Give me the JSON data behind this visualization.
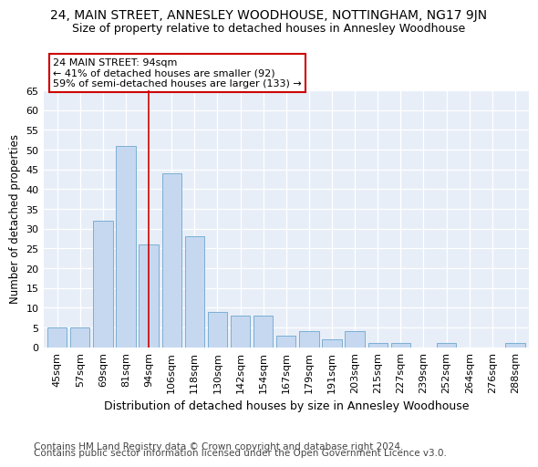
{
  "title": "24, MAIN STREET, ANNESLEY WOODHOUSE, NOTTINGHAM, NG17 9JN",
  "subtitle": "Size of property relative to detached houses in Annesley Woodhouse",
  "xlabel": "Distribution of detached houses by size in Annesley Woodhouse",
  "ylabel": "Number of detached properties",
  "categories": [
    "45sqm",
    "57sqm",
    "69sqm",
    "81sqm",
    "94sqm",
    "106sqm",
    "118sqm",
    "130sqm",
    "142sqm",
    "154sqm",
    "167sqm",
    "179sqm",
    "191sqm",
    "203sqm",
    "215sqm",
    "227sqm",
    "239sqm",
    "252sqm",
    "264sqm",
    "276sqm",
    "288sqm"
  ],
  "values": [
    5,
    5,
    32,
    51,
    26,
    44,
    28,
    9,
    8,
    8,
    3,
    4,
    2,
    4,
    1,
    1,
    0,
    1,
    0,
    0,
    1
  ],
  "bar_color": "#c5d8f0",
  "bar_edge_color": "#7bafd4",
  "vline_x_index": 4,
  "vline_color": "#cc0000",
  "annotation_box_text": "24 MAIN STREET: 94sqm\n← 41% of detached houses are smaller (92)\n59% of semi-detached houses are larger (133) →",
  "annotation_box_color": "#ffffff",
  "annotation_box_edge_color": "#cc0000",
  "ylim": [
    0,
    65
  ],
  "yticks": [
    0,
    5,
    10,
    15,
    20,
    25,
    30,
    35,
    40,
    45,
    50,
    55,
    60,
    65
  ],
  "footer_line1": "Contains HM Land Registry data © Crown copyright and database right 2024.",
  "footer_line2": "Contains public sector information licensed under the Open Government Licence v3.0.",
  "bg_color": "#ffffff",
  "plot_bg_color": "#e8eef8",
  "title_fontsize": 10,
  "subtitle_fontsize": 9,
  "xlabel_fontsize": 9,
  "ylabel_fontsize": 8.5,
  "tick_fontsize": 8,
  "footer_fontsize": 7.5
}
